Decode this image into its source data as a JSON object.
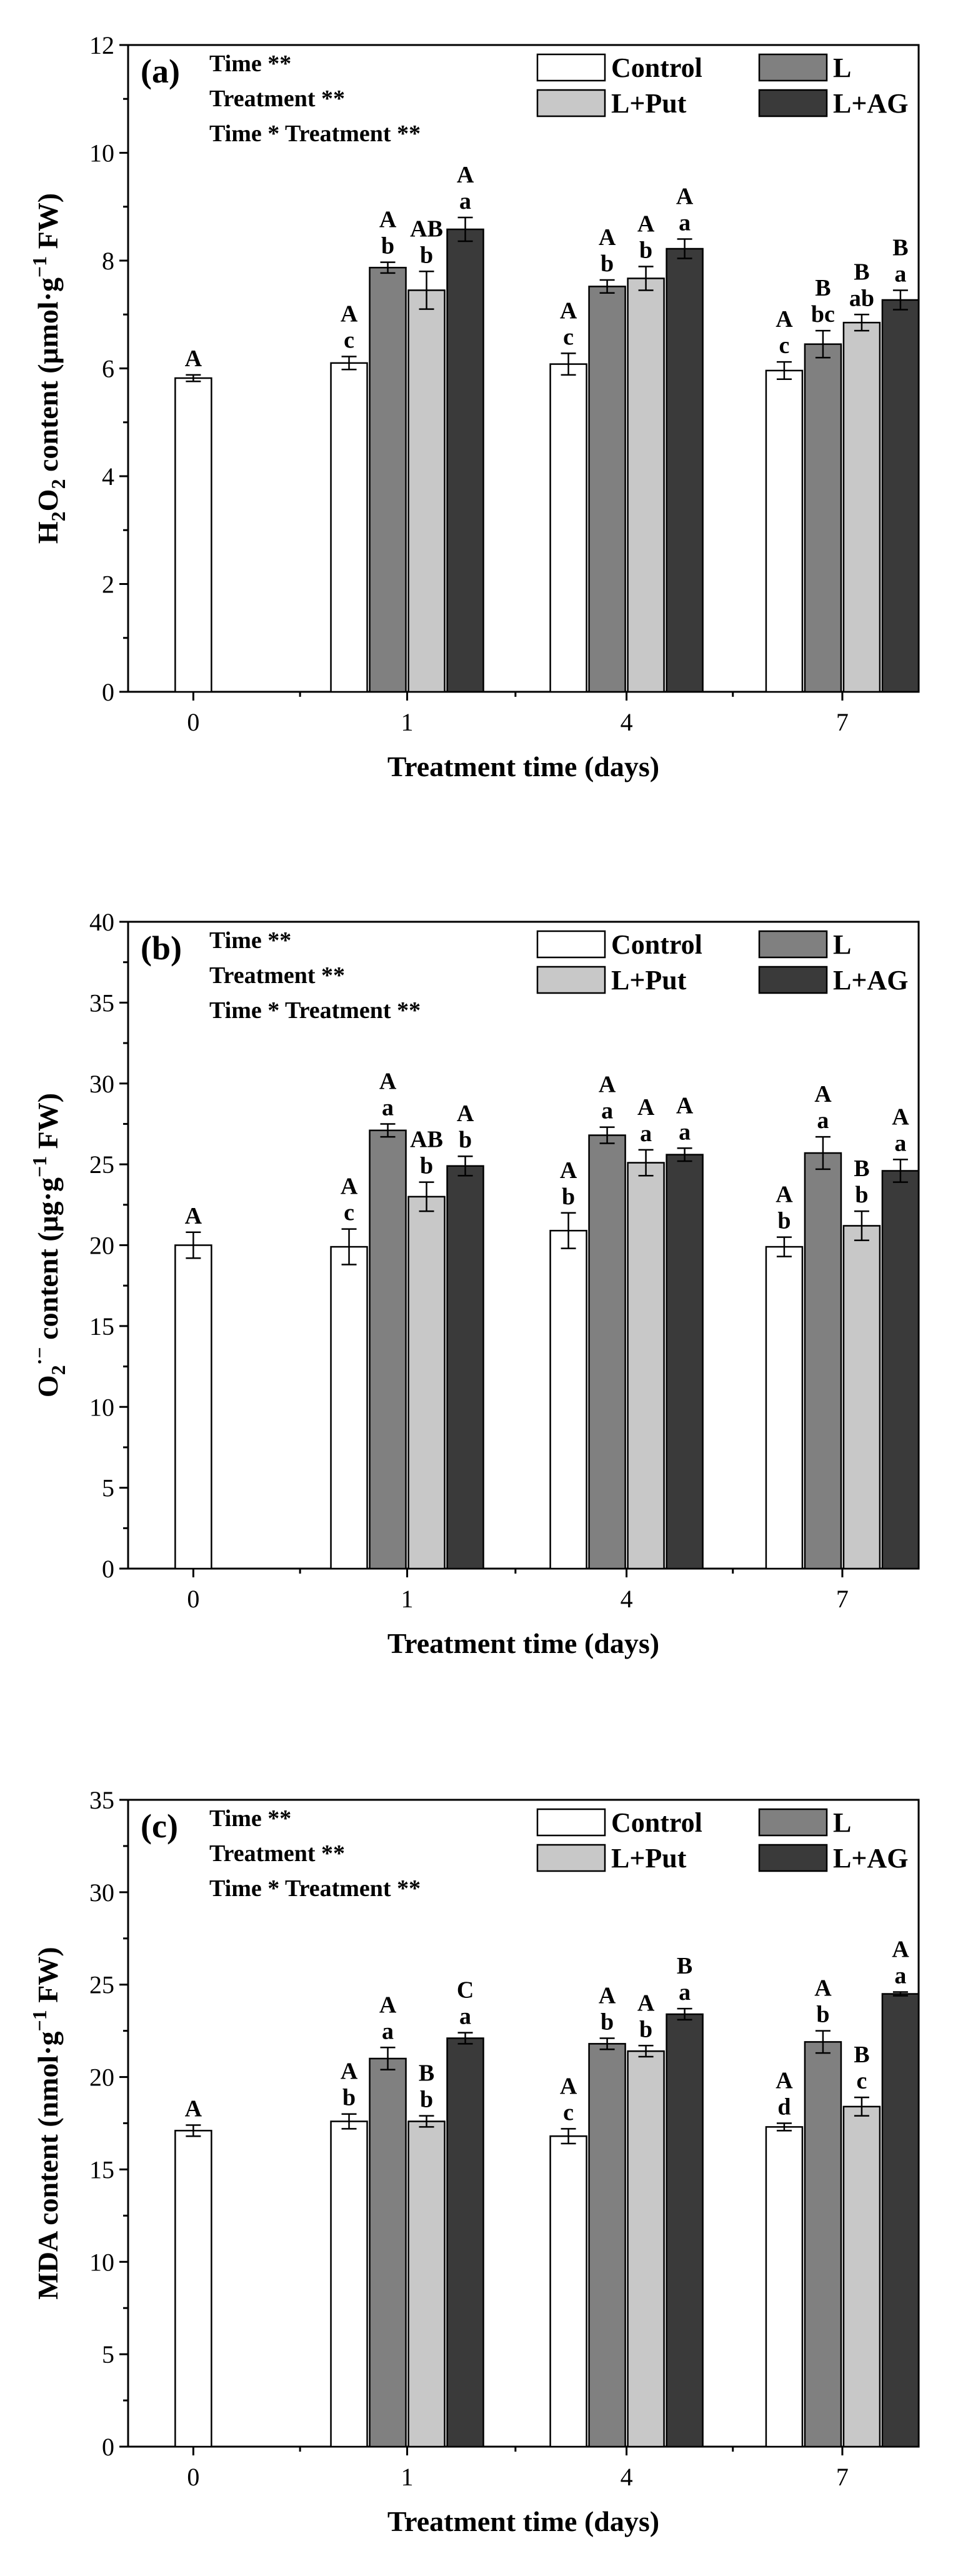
{
  "colors": {
    "Control": "#ffffff",
    "L": "#808080",
    "L+Put": "#c8c8c8",
    "L+AG": "#3a3a3a",
    "axis": "#000000"
  },
  "chart_data": [
    {
      "type": "bar",
      "panel_label": "(a)",
      "ylabel_parts": [
        "H",
        "2",
        "O",
        "2",
        " content (μmol·g",
        "−1",
        " FW)"
      ],
      "xlabel": "Treatment time (days)",
      "ylim": [
        0,
        12
      ],
      "yticks": [
        "0",
        "2",
        "4",
        "6",
        "8",
        "10",
        "12"
      ],
      "categories": [
        "0",
        "1",
        "4",
        "7"
      ],
      "stats": [
        "Time **",
        "Treatment  **",
        "Time * Treatment **"
      ],
      "legend": [
        "Control",
        "L",
        "L+Put",
        "L+AG"
      ],
      "series": [
        {
          "name": "Control",
          "values": [
            5.82,
            6.1,
            6.08,
            5.96
          ],
          "errors": [
            0.06,
            0.12,
            0.2,
            0.16
          ],
          "upper": [
            "A",
            "A",
            "A",
            "A"
          ],
          "lower": [
            "",
            "c",
            "c",
            "c"
          ]
        },
        {
          "name": "L",
          "values": [
            null,
            7.87,
            7.52,
            6.45
          ],
          "errors": [
            null,
            0.1,
            0.12,
            0.25
          ],
          "upper": [
            "",
            "A",
            "A",
            "B"
          ],
          "lower": [
            "",
            "b",
            "b",
            "bc"
          ]
        },
        {
          "name": "L+Put",
          "values": [
            null,
            7.45,
            7.67,
            6.85
          ],
          "errors": [
            null,
            0.35,
            0.22,
            0.15
          ],
          "upper": [
            "",
            "AB",
            "A",
            "B"
          ],
          "lower": [
            "",
            "b",
            "b",
            "ab"
          ]
        },
        {
          "name": "L+AG",
          "values": [
            null,
            8.58,
            8.22,
            7.27
          ],
          "errors": [
            null,
            0.22,
            0.18,
            0.18
          ],
          "upper": [
            "",
            "A",
            "A",
            "B"
          ],
          "lower": [
            "",
            "a",
            "a",
            "a"
          ]
        }
      ]
    },
    {
      "type": "bar",
      "panel_label": "(b)",
      "ylabel_parts": [
        "O",
        "2",
        "·−",
        "",
        " content (μg·g",
        "−1",
        " FW)"
      ],
      "xlabel": "Treatment time (days)",
      "ylim": [
        0,
        40
      ],
      "yticks": [
        "0",
        "5",
        "10",
        "15",
        "20",
        "25",
        "30",
        "35",
        "40"
      ],
      "categories": [
        "0",
        "1",
        "4",
        "7"
      ],
      "stats": [
        "Time **",
        "Treatment  **",
        "Time * Treatment **"
      ],
      "legend": [
        "Control",
        "L",
        "L+Put",
        "L+AG"
      ],
      "series": [
        {
          "name": "Control",
          "values": [
            20.0,
            19.9,
            20.9,
            19.9
          ],
          "errors": [
            0.8,
            1.1,
            1.1,
            0.6
          ],
          "upper": [
            "A",
            "A",
            "A",
            "A"
          ],
          "lower": [
            "",
            "c",
            "b",
            "b"
          ]
        },
        {
          "name": "L",
          "values": [
            null,
            27.1,
            26.8,
            25.7
          ],
          "errors": [
            null,
            0.4,
            0.5,
            1.0
          ],
          "upper": [
            "",
            "A",
            "A",
            "A"
          ],
          "lower": [
            "",
            "a",
            "a",
            "a"
          ]
        },
        {
          "name": "L+Put",
          "values": [
            null,
            23.0,
            25.1,
            21.2
          ],
          "errors": [
            null,
            0.9,
            0.8,
            0.9
          ],
          "upper": [
            "",
            "AB",
            "A",
            "B"
          ],
          "lower": [
            "",
            "b",
            "a",
            "b"
          ]
        },
        {
          "name": "L+AG",
          "values": [
            null,
            24.9,
            25.6,
            24.6
          ],
          "errors": [
            null,
            0.6,
            0.4,
            0.7
          ],
          "upper": [
            "",
            "A",
            "A",
            "A"
          ],
          "lower": [
            "",
            "b",
            "a",
            "a"
          ]
        }
      ]
    },
    {
      "type": "bar",
      "panel_label": "(c)",
      "ylabel_parts": [
        "MDA content (nmol·g",
        "−1",
        " FW)"
      ],
      "xlabel": "Treatment time (days)",
      "ylim": [
        0,
        35
      ],
      "yticks": [
        "0",
        "5",
        "10",
        "15",
        "20",
        "25",
        "30",
        "35"
      ],
      "categories": [
        "0",
        "1",
        "4",
        "7"
      ],
      "stats": [
        "Time **",
        "Treatment  **",
        "Time * Treatment **"
      ],
      "legend": [
        "Control",
        "L",
        "L+Put",
        "L+AG"
      ],
      "series": [
        {
          "name": "Control",
          "values": [
            17.1,
            17.6,
            16.8,
            17.3
          ],
          "errors": [
            0.3,
            0.4,
            0.4,
            0.2
          ],
          "upper": [
            "A",
            "A",
            "A",
            "A"
          ],
          "lower": [
            "",
            "b",
            "c",
            "d"
          ]
        },
        {
          "name": "L",
          "values": [
            null,
            21.0,
            21.8,
            21.9
          ],
          "errors": [
            null,
            0.6,
            0.3,
            0.6
          ],
          "upper": [
            "",
            "A",
            "A",
            "A"
          ],
          "lower": [
            "",
            "a",
            "b",
            "b"
          ]
        },
        {
          "name": "L+Put",
          "values": [
            null,
            17.6,
            21.4,
            18.4
          ],
          "errors": [
            null,
            0.3,
            0.3,
            0.5
          ],
          "upper": [
            "",
            "B",
            "A",
            "B"
          ],
          "lower": [
            "",
            "b",
            "b",
            "c"
          ]
        },
        {
          "name": "L+AG",
          "values": [
            null,
            22.1,
            23.4,
            24.5
          ],
          "errors": [
            null,
            0.3,
            0.3,
            0.1
          ],
          "upper": [
            "",
            "C",
            "B",
            "A"
          ],
          "lower": [
            "",
            "a",
            "a",
            "a"
          ]
        }
      ]
    }
  ]
}
